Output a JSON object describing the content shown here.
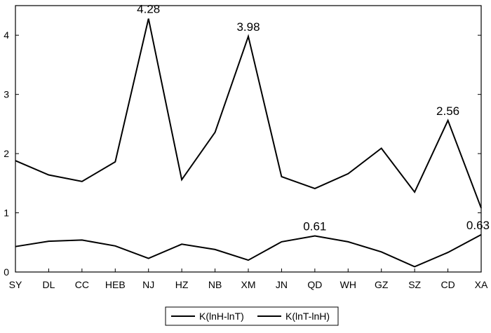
{
  "chart_data": {
    "type": "line",
    "categories": [
      "SY",
      "DL",
      "CC",
      "HEB",
      "NJ",
      "HZ",
      "NB",
      "XM",
      "JN",
      "QD",
      "WH",
      "GZ",
      "SZ",
      "CD",
      "XA"
    ],
    "ylim": [
      0,
      4.5
    ],
    "yticks": [
      0,
      1,
      2,
      3,
      4
    ],
    "grid": false,
    "legend_position": "bottom-center",
    "series": [
      {
        "name": "K(lnH-lnT)",
        "color": "#000000",
        "values": [
          1.88,
          1.64,
          1.53,
          1.86,
          4.28,
          1.56,
          2.36,
          3.98,
          1.61,
          1.41,
          1.66,
          2.09,
          1.35,
          2.56,
          1.08
        ]
      },
      {
        "name": "K(lnT-lnH)",
        "color": "#000000",
        "values": [
          0.43,
          0.52,
          0.54,
          0.44,
          0.23,
          0.47,
          0.38,
          0.2,
          0.51,
          0.61,
          0.51,
          0.34,
          0.09,
          0.33,
          0.63
        ]
      }
    ],
    "annotations": [
      {
        "series": 0,
        "category": "NJ",
        "text": "4.28"
      },
      {
        "series": 0,
        "category": "XM",
        "text": "3.98"
      },
      {
        "series": 0,
        "category": "CD",
        "text": "2.56"
      },
      {
        "series": 1,
        "category": "QD",
        "text": "0.61"
      },
      {
        "series": 1,
        "category": "XA",
        "text": "0.63"
      }
    ]
  }
}
